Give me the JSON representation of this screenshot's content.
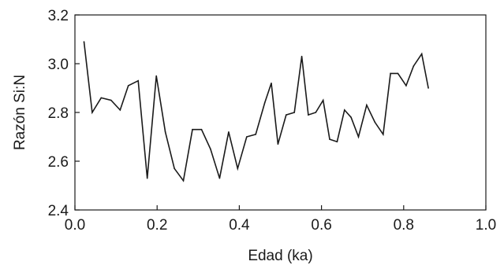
{
  "chart_data": {
    "type": "line",
    "xlabel": "Edad (ka)",
    "ylabel": "Razón Si:N",
    "xlim": [
      0.0,
      1.0
    ],
    "ylim": [
      2.4,
      3.2
    ],
    "xticks": [
      "0.0",
      "0.2",
      "0.4",
      "0.6",
      "0.8",
      "1.0"
    ],
    "yticks": [
      "2.4",
      "2.6",
      "2.8",
      "3.0",
      "3.2"
    ],
    "grid": false,
    "series": [
      {
        "color": "#1a1a1a",
        "x": [
          0.022,
          0.042,
          0.064,
          0.088,
          0.11,
          0.13,
          0.154,
          0.176,
          0.198,
          0.22,
          0.242,
          0.264,
          0.286,
          0.308,
          0.33,
          0.352,
          0.374,
          0.396,
          0.418,
          0.44,
          0.462,
          0.478,
          0.494,
          0.514,
          0.534,
          0.552,
          0.568,
          0.586,
          0.604,
          0.62,
          0.638,
          0.656,
          0.672,
          0.69,
          0.71,
          0.73,
          0.75,
          0.768,
          0.786,
          0.806,
          0.824,
          0.844,
          0.86
        ],
        "y": [
          3.09,
          2.8,
          2.86,
          2.85,
          2.81,
          2.91,
          2.93,
          2.53,
          2.95,
          2.72,
          2.57,
          2.52,
          2.73,
          2.73,
          2.65,
          2.53,
          2.72,
          2.57,
          2.7,
          2.71,
          2.84,
          2.92,
          2.67,
          2.79,
          2.8,
          3.03,
          2.79,
          2.8,
          2.85,
          2.69,
          2.68,
          2.81,
          2.78,
          2.7,
          2.83,
          2.76,
          2.71,
          2.96,
          2.96,
          2.91,
          2.99,
          3.04,
          2.9
        ]
      }
    ]
  }
}
